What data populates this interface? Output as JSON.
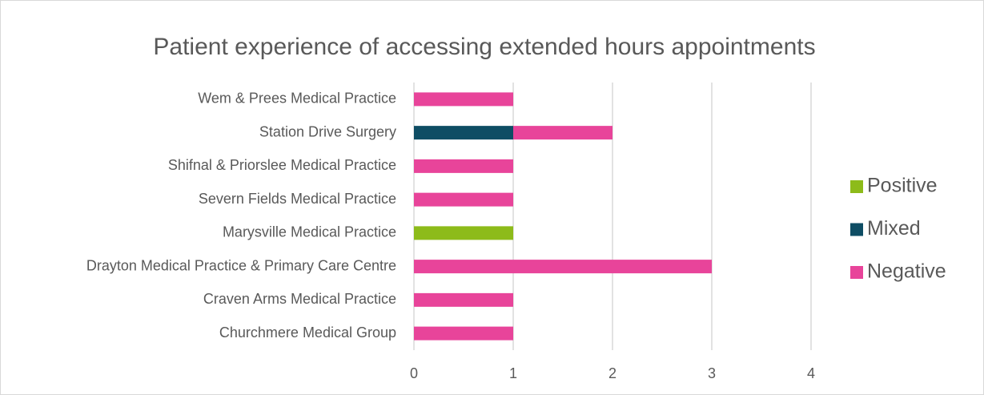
{
  "chart_data": {
    "type": "bar",
    "orientation": "horizontal",
    "stacked": true,
    "title": "Patient experience of accessing extended hours appointments",
    "categories": [
      "Wem & Prees Medical Practice",
      "Station Drive Surgery",
      "Shifnal & Priorslee Medical Practice",
      "Severn Fields Medical Practice",
      "Marysville Medical Practice",
      "Drayton Medical Practice & Primary Care Centre",
      "Craven Arms Medical Practice",
      "Churchmere Medical Group"
    ],
    "series": [
      {
        "name": "Positive",
        "color": "#8dbb1a",
        "values": [
          0,
          0,
          0,
          0,
          1,
          0,
          0,
          0
        ]
      },
      {
        "name": "Mixed",
        "color": "#0e4d64",
        "values": [
          0,
          1,
          0,
          0,
          0,
          0,
          0,
          0
        ]
      },
      {
        "name": "Negative",
        "color": "#e8449a",
        "values": [
          1,
          1,
          1,
          1,
          0,
          3,
          1,
          1
        ]
      }
    ],
    "xlim": [
      0,
      4
    ],
    "xticks": [
      0,
      1,
      2,
      3,
      4
    ],
    "grid": true,
    "legend": "right"
  }
}
